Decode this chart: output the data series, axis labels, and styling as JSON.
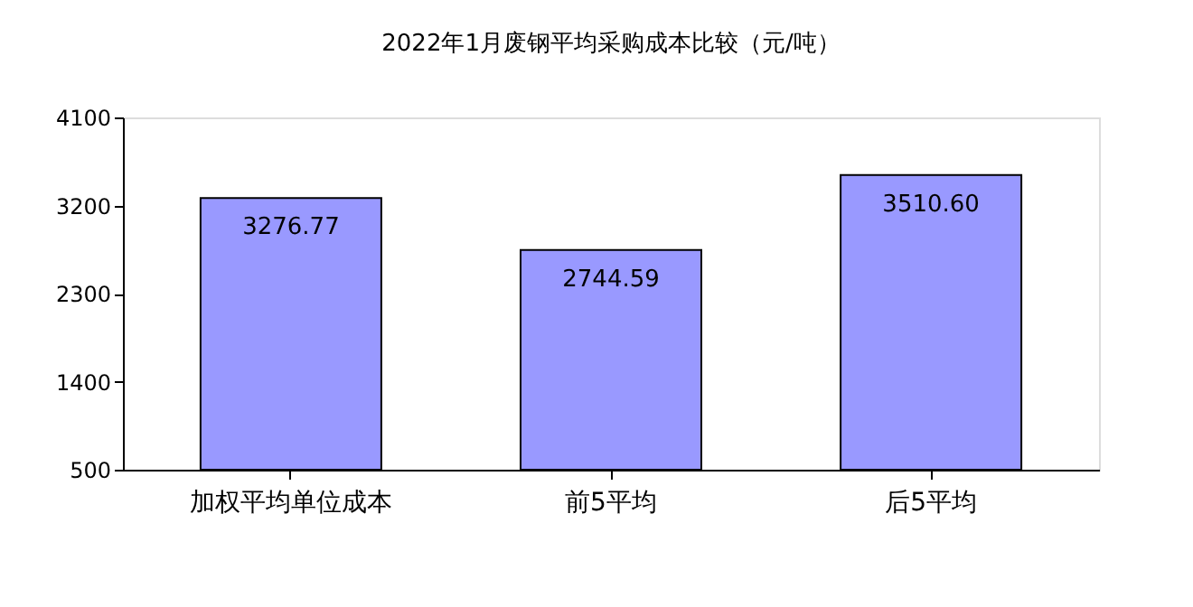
{
  "chart_data": {
    "type": "bar",
    "title": "2022年1月废钢平均采购成本比较（元/吨）",
    "categories": [
      "加权平均单位成本",
      "前5平均",
      "后5平均"
    ],
    "values": [
      3276.77,
      2744.59,
      3510.6
    ],
    "value_labels": [
      "3276.77",
      "2744.59",
      "3510.60"
    ],
    "color": "#9999ff",
    "ylim": [
      500,
      4100
    ],
    "yticks": [
      500,
      1400,
      2300,
      3200,
      4100
    ],
    "grid": false
  }
}
